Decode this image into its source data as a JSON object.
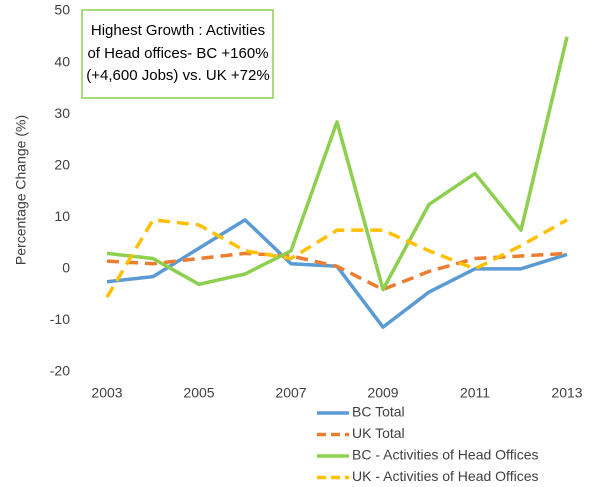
{
  "chart_data": {
    "type": "line",
    "y_label": "Percentage Change (%)",
    "annotation": [
      "Highest Growth : Activities",
      "of Head offices-  BC +160%",
      "(+4,600 Jobs) vs. UK +72%"
    ],
    "categories": [
      "2003",
      null,
      "2005",
      null,
      "2007",
      null,
      "2009",
      null,
      "2011",
      null,
      "2013"
    ],
    "ylim": [
      -20,
      50
    ],
    "yticks": [
      -20,
      -10,
      0,
      10,
      20,
      30,
      40,
      50
    ],
    "series": [
      {
        "name": "BC Total",
        "color": "#5b9bd5",
        "dash": false,
        "values": [
          -2.5,
          -1.5,
          4,
          9.5,
          1,
          0.5,
          -11.3,
          -4.5,
          0,
          0,
          2.8
        ]
      },
      {
        "name": "UK Total",
        "color": "#ed7d31",
        "dash": true,
        "values": [
          1.5,
          1,
          2,
          3,
          2.5,
          0.5,
          -4,
          -0.5,
          2,
          2.5,
          3
        ]
      },
      {
        "name": "BC - Activities of Head Offices",
        "color": "#8dcf4f",
        "dash": false,
        "values": [
          3,
          2,
          -3,
          -1,
          3.5,
          28.5,
          -4,
          12.5,
          18.5,
          7.5,
          45
        ]
      },
      {
        "name": "UK - Activities of Head Offices",
        "color": "#ffc000",
        "dash": true,
        "values": [
          -5.5,
          9.5,
          8.5,
          3.5,
          2,
          7.5,
          7.5,
          3.5,
          0,
          4.5,
          9.5
        ]
      }
    ]
  }
}
